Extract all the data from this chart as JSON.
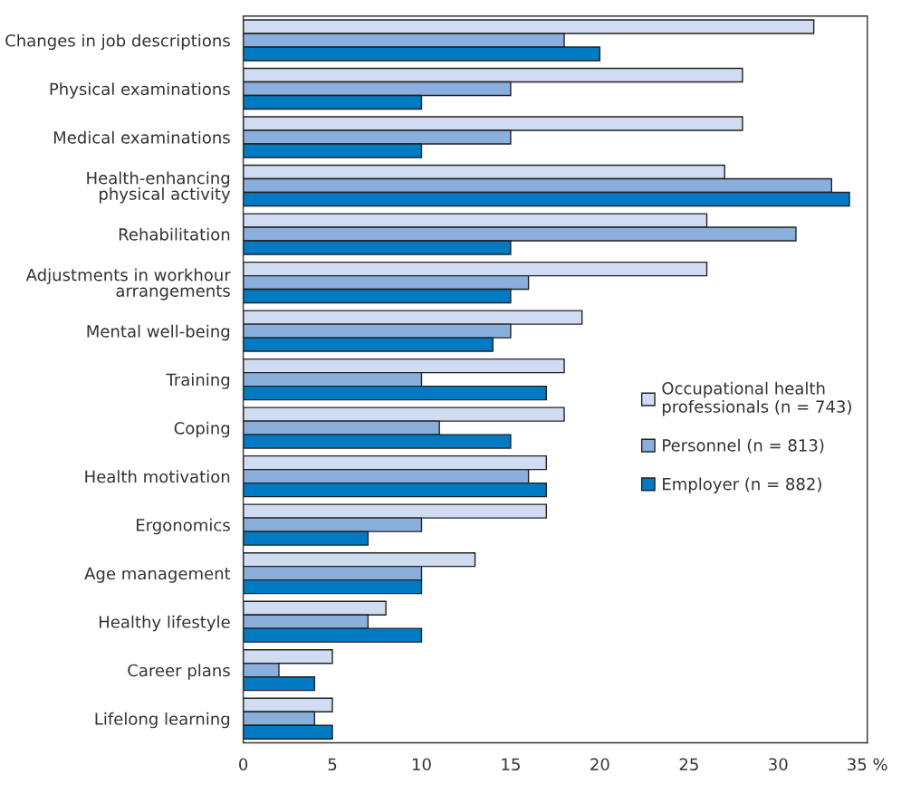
{
  "chart_data": {
    "type": "bar",
    "orientation": "horizontal",
    "categories": [
      "Changes in job descriptions",
      "Physical examinations",
      "Medical examinations",
      "Health-enhancing\nphysical activity",
      "Rehabilitation",
      "Adjustments in workhour\narrangements",
      "Mental well-being",
      "Training",
      "Coping",
      "Health motivation",
      "Ergonomics",
      "Age management",
      "Healthy lifestyle",
      "Career plans",
      "Lifelong learning"
    ],
    "series": [
      {
        "name": "Occupational health\nprofessionals (n = 743)",
        "color": "#cfdcf2",
        "values": [
          32,
          28,
          28,
          27,
          26,
          26,
          19,
          18,
          18,
          17,
          17,
          13,
          8,
          5,
          5
        ]
      },
      {
        "name": "Personnel (n = 813)",
        "color": "#8aafdc",
        "values": [
          18,
          15,
          15,
          33,
          31,
          16,
          15,
          10,
          11,
          16,
          10,
          10,
          7,
          2,
          4
        ]
      },
      {
        "name": "Employer (n = 882)",
        "color": "#007ac2",
        "values": [
          20,
          10,
          10,
          34,
          15,
          15,
          14,
          17,
          15,
          17,
          7,
          10,
          10,
          4,
          5
        ]
      }
    ],
    "xlim": [
      0,
      35
    ],
    "xticks": [
      0,
      5,
      10,
      15,
      20,
      25,
      30,
      {
        "value": 35,
        "label": "35 %"
      }
    ],
    "grid": false,
    "legend": "right"
  }
}
